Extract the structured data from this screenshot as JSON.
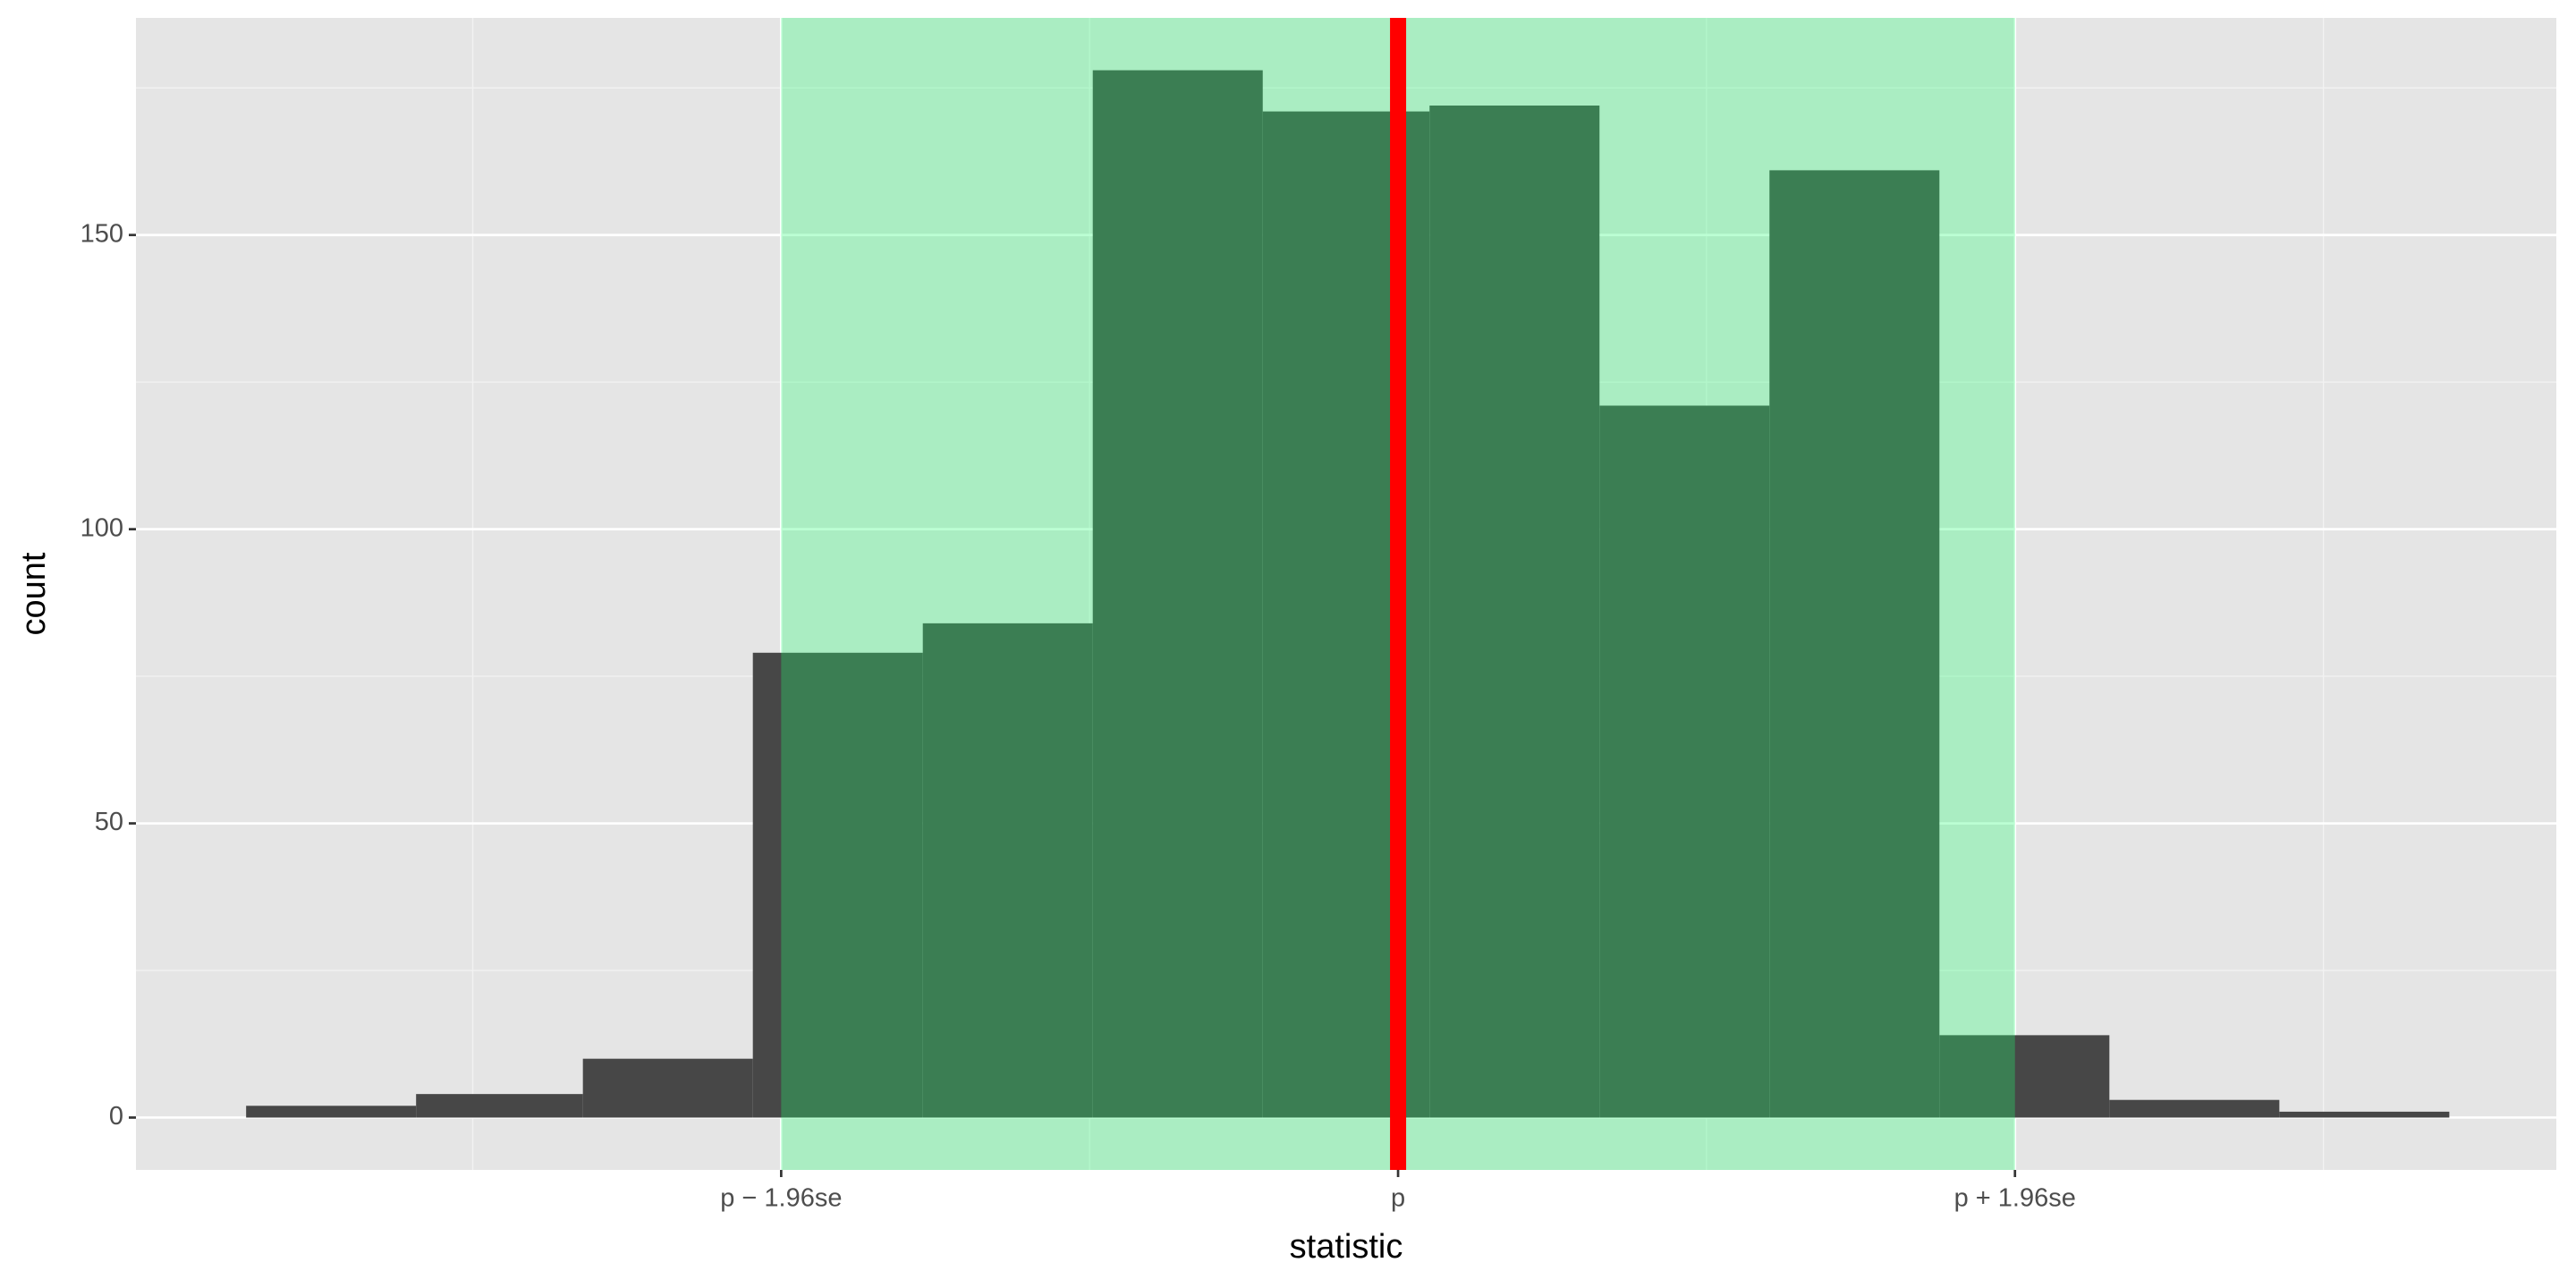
{
  "chart_data": {
    "type": "histogram",
    "x_label": "statistic",
    "y_label": "count",
    "bins": [
      -3.66,
      -3.12,
      -2.59,
      -2.05,
      -1.51,
      -0.97,
      -0.43,
      0.1,
      0.64,
      1.18,
      1.72,
      2.26,
      2.8,
      3.34
    ],
    "values": [
      2,
      4,
      10,
      79,
      84,
      178,
      171,
      172,
      121,
      161,
      14,
      3,
      1
    ],
    "color": "#474747",
    "shade": [
      -1.96,
      1.96
    ],
    "shade_color": "#20ff70",
    "shade_opacity": 0.3,
    "vline": 0,
    "vline_color": "#ff0000",
    "xlim": [
      -4.01,
      3.68
    ],
    "ylim": [
      -8.9,
      186.9
    ],
    "xticks": [
      {
        "value": -1.96,
        "label": "p − 1.96se"
      },
      {
        "value": 0,
        "label": "p"
      },
      {
        "value": 1.96,
        "label": "p + 1.96se"
      }
    ],
    "yticks": [
      0,
      50,
      100,
      150
    ],
    "grid": true
  }
}
